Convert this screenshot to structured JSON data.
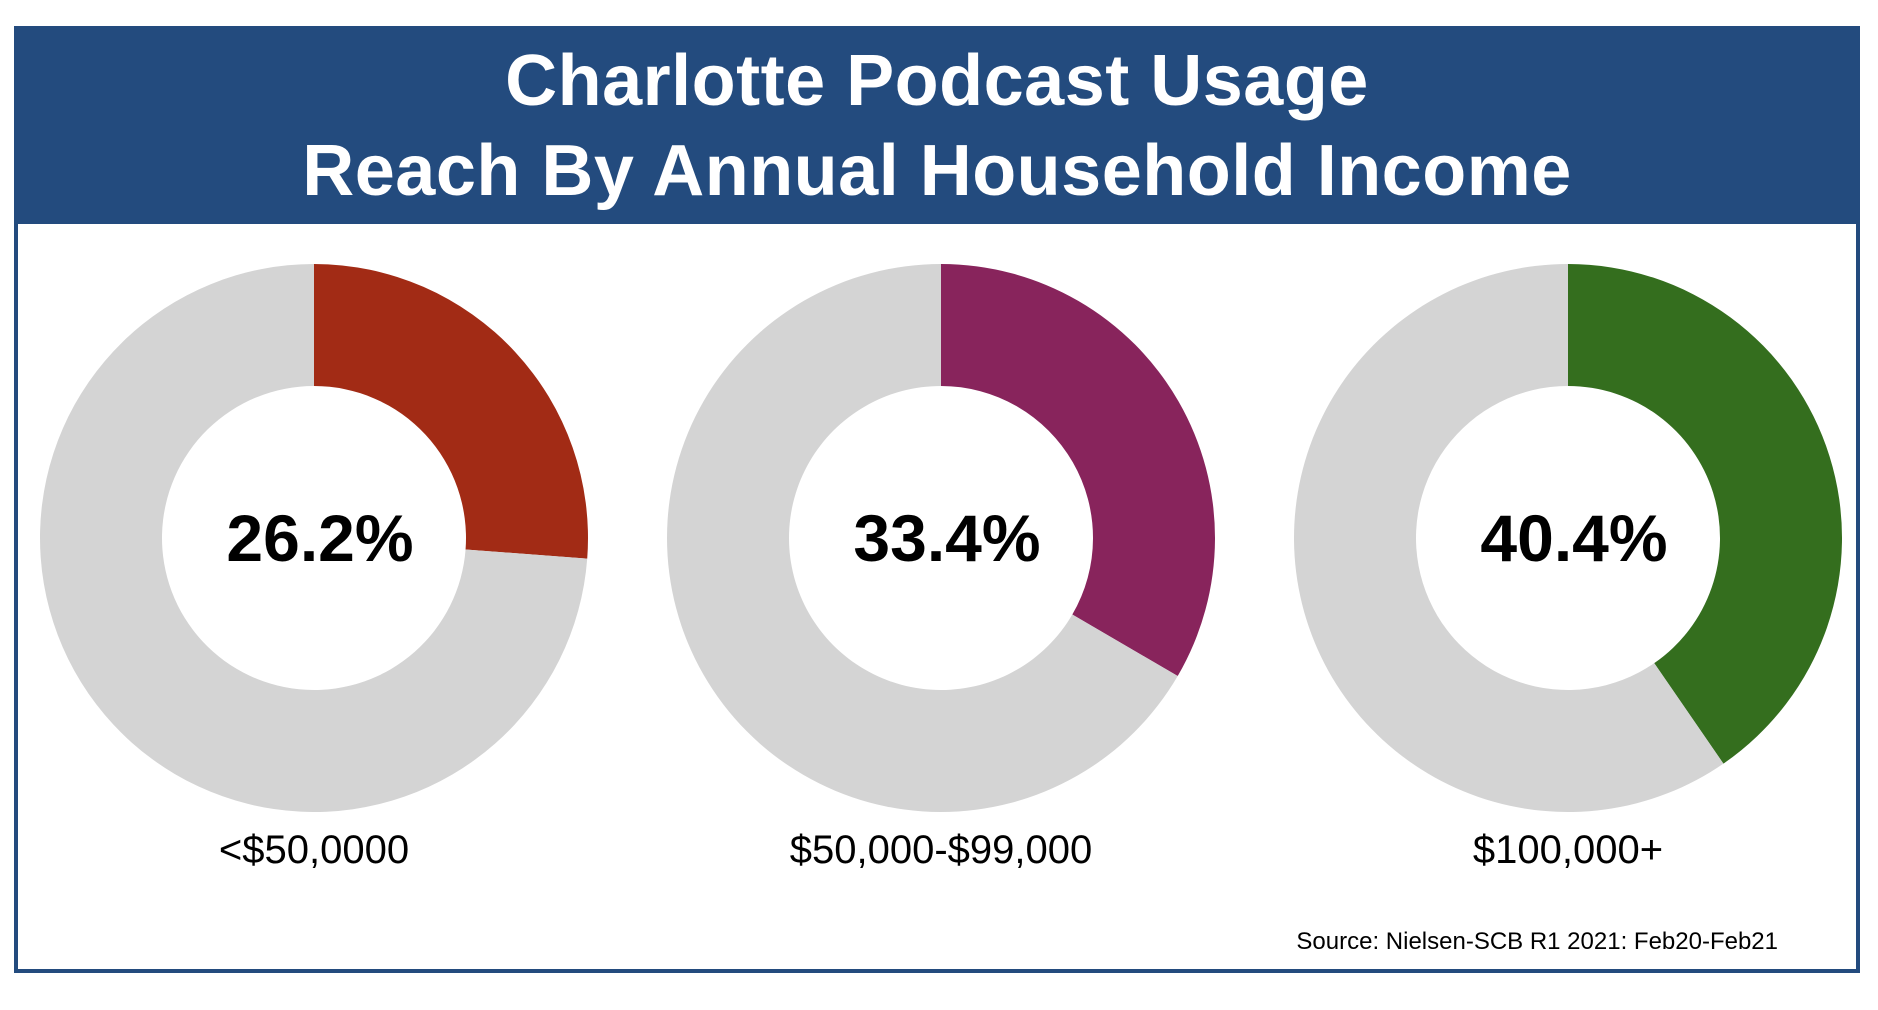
{
  "header": {
    "title_line1": "Charlotte Podcast Usage",
    "title_line2": "Reach By Annual Household Income"
  },
  "source": "Source: Nielsen-SCB R1 2021: Feb20-Feb21",
  "colors": {
    "header_bg": "#234b7e",
    "remainder": "#d4d4d4"
  },
  "chart_data": [
    {
      "type": "pie",
      "title": "",
      "category": "<$50,0000",
      "value_label": "26.2%",
      "values": [
        26.2,
        73.8
      ],
      "colors": [
        "#a22b15",
        "#d4d4d4"
      ]
    },
    {
      "type": "pie",
      "title": "",
      "category": "$50,000-$99,000",
      "value_label": "33.4%",
      "values": [
        33.4,
        66.6
      ],
      "colors": [
        "#88245c",
        "#d4d4d4"
      ]
    },
    {
      "type": "pie",
      "title": "",
      "category": "$100,000+",
      "value_label": "40.4%",
      "values": [
        40.4,
        59.6
      ],
      "colors": [
        "#346e1e",
        "#d4d4d4"
      ]
    }
  ]
}
